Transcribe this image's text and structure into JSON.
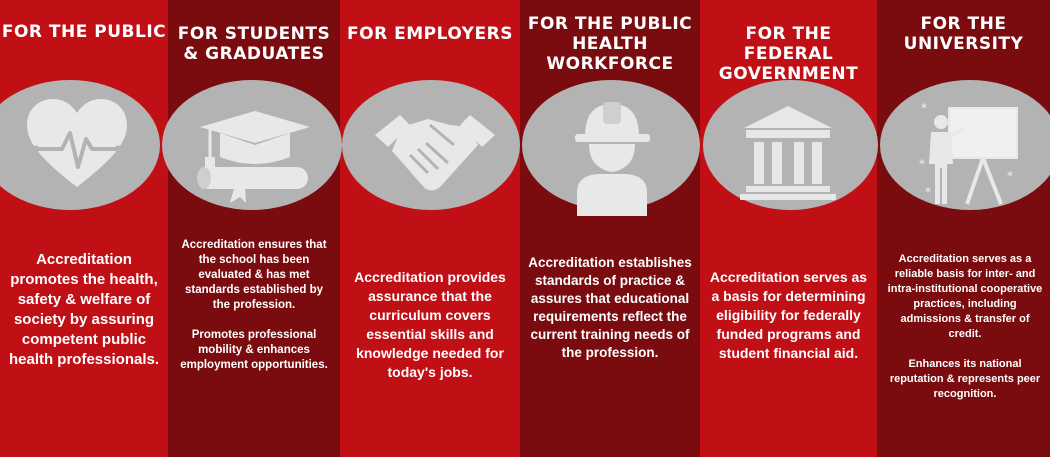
{
  "columns": [
    {
      "title": "FOR THE PUBLIC",
      "icon": "heart-pulse-icon",
      "body": "Accreditation promotes the health, safety & welfare of society by assuring competent public health professionals."
    },
    {
      "title": "FOR STUDENTS\n& GRADUATES",
      "icon": "graduation-cap-diploma-icon",
      "body": "Accreditation ensures that the school has been evaluated & has met standards established by the profession.\n\nPromotes professional mobility & enhances employment opportunities."
    },
    {
      "title": "FOR EMPLOYERS",
      "icon": "handshake-icon",
      "body": "Accreditation provides assurance that the curriculum covers essential skills and knowledge needed for today's jobs."
    },
    {
      "title": "FOR THE PUBLIC\nHEALTH\nWORKFORCE",
      "icon": "hard-hat-worker-icon",
      "body": "Accreditation establishes standards of practice & assures that educational requirements reflect the current training needs of the profession."
    },
    {
      "title": "FOR THE FEDERAL\nGOVERNMENT",
      "icon": "government-building-icon",
      "body": "Accreditation serves as a basis for determining eligibility for federally funded programs and student financial aid."
    },
    {
      "title": "FOR THE\nUNIVERSITY",
      "icon": "presenter-whiteboard-icon",
      "body": "Accreditation serves as a reliable basis for inter- and intra-institutional cooperative practices, including admissions & transfer of credit.\n\nEnhances its national reputation & represents peer recognition."
    }
  ],
  "colors": {
    "red": "#c10f16",
    "dark_red": "#7a0c10",
    "oval_gray": "#b3b3b3",
    "icon_gray": "#e8e8e8",
    "text": "#ffffff"
  }
}
